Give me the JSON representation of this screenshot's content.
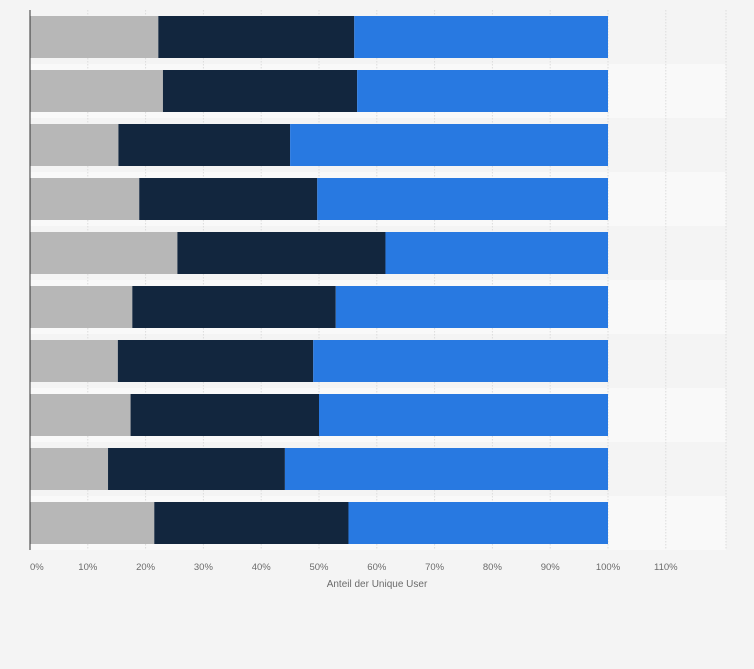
{
  "chart_data": {
    "type": "bar",
    "orientation": "horizontal",
    "stacked": true,
    "xlabel": "Anteil der Unique User",
    "xlim": [
      0,
      120
    ],
    "xticks": [
      0,
      10,
      20,
      30,
      40,
      50,
      60,
      70,
      80,
      90,
      100,
      110
    ],
    "tick_labels": [
      "0%",
      "10%",
      "20%",
      "30%",
      "40%",
      "50%",
      "60%",
      "70%",
      "80%",
      "90%",
      "100%",
      "110%"
    ],
    "grid": true,
    "series": [
      {
        "color": "#b7b7b7",
        "values": [
          22.2,
          23.0,
          15.3,
          18.9,
          25.5,
          17.7,
          15.2,
          17.4,
          13.5,
          21.5
        ]
      },
      {
        "color": "#12263e",
        "values": [
          33.9,
          33.6,
          29.7,
          30.8,
          36.0,
          35.2,
          33.8,
          32.6,
          30.6,
          33.6
        ]
      },
      {
        "color": "#2879e1",
        "values": [
          43.9,
          43.4,
          55.0,
          50.3,
          38.5,
          47.1,
          51.0,
          50.0,
          55.9,
          44.9
        ]
      }
    ]
  }
}
